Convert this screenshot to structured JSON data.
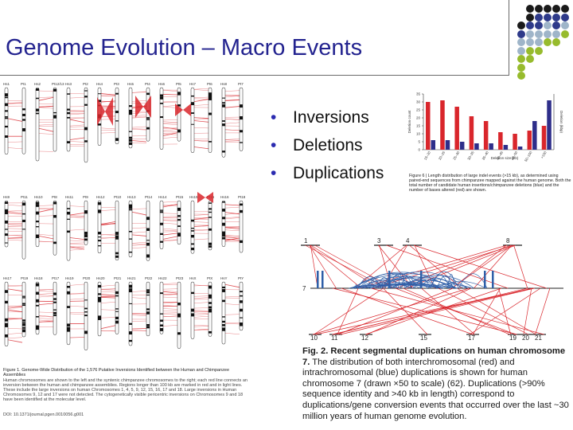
{
  "slide": {
    "title": "Genome Evolution – Macro Events",
    "bullets": [
      "Inversions",
      "Deletions",
      "Duplications"
    ]
  },
  "colors": {
    "title": "#23238f",
    "bullet": "#2b2bb0",
    "dots": [
      "#1a1a1a",
      "#2e3a8a",
      "#9fb5c9",
      "#97bb2d",
      "#ffffff"
    ],
    "red": "#d9262c",
    "blue": "#2f5fa8"
  },
  "figure_left": {
    "row1_labels": [
      "Hs1",
      "Pt1",
      "Hs2",
      "Pt12/13",
      "Hs3",
      "Pt2",
      "Hs4",
      "Pt3",
      "Hs5",
      "Pt4",
      "Hs6",
      "Pt5",
      "Hs7",
      "Pt6",
      "Hs8",
      "Pt7"
    ],
    "row2_labels": [
      "Hs9",
      "Pt11",
      "Hs10",
      "Pt8",
      "Hs11",
      "Pt9",
      "Hs12",
      "Pt10",
      "Hs13",
      "Pt14",
      "Hs14",
      "Pt15",
      "Hs15",
      "Pt16",
      "Hs16",
      "Pt18"
    ],
    "row3_labels": [
      "Hs17",
      "Pt19",
      "Hs18",
      "Pt17",
      "Hs19",
      "Pt20",
      "Hs20",
      "Pt21",
      "Hs21",
      "Pt22",
      "Hs22",
      "Pt23",
      "HsX",
      "PtX",
      "HsY",
      "PtY"
    ],
    "caption_title": "Figure 1. Genome-Wide Distribution of the 1,576 Putative Inversions Identified between the Human and Chimpanzee Assemblies",
    "caption_body": "Human chromosomes are shown to the left and the syntenic chimpanzee chromosomes to the right; each red line connects an inversion between the human and chimpanzee assemblies. Regions longer than 100 kb are marked in red and in light lines. These include the large inversions on human Chromosomes 1, 4, 5, 9, 12, 15, 16, 17 and 18. Large inversions in Human Chromosomes 9, 12 and 17 were not detected. The cytogenetically visible pericentric inversions on Chromosomes 9 and 18 have been identified at the molecular level.",
    "doi": "DOI: 10.1371/journal.pgen.0010056.g001"
  },
  "figure_chart": {
    "ylabel_left": "Deletion count",
    "ylabel_right": "Deletion (kbp)",
    "xlabel": "Deletion size (kb)",
    "caption": "Figure 6 | Length distribution of large indel events (>15 kb), as determined using paired-end sequences from chimpanzee mapped against the human genome. Both the total number of candidate human insertions/chimpanzee deletions (blue) and the number of bases altered (red) are shown."
  },
  "chart_data": {
    "type": "bar",
    "categories": [
      "15–20",
      "20–25",
      "25–30",
      "30–35",
      "35–40",
      "40–45",
      "45–50",
      "50–150",
      ">150"
    ],
    "series": [
      {
        "values": [
          30,
          31,
          27,
          21,
          18,
          11,
          10,
          12,
          15
        ]
      },
      {
        "values": [
          6,
          6,
          5,
          4,
          4,
          3,
          2,
          18,
          31
        ]
      }
    ],
    "xlabel": "Deletion size (kb)",
    "ylabel": "Deletion count",
    "ylim": [
      0,
      35
    ],
    "yticks": [
      0,
      5,
      10,
      15,
      20,
      25,
      30,
      35
    ]
  },
  "figure_dup": {
    "top_ticks": [
      "1",
      "3",
      "4",
      "8"
    ],
    "bottom_ticks": [
      "10",
      "11",
      "12",
      "15",
      "17",
      "19",
      "20",
      "21"
    ],
    "chrom_label": "7",
    "caption_bold": "Fig. 2. Recent segmental duplications on human chromosome 7.",
    "caption_rest": "The distribution of both interchromosomal (red) and intrachromosomal (blue) duplications is shown for human chromosome 7 (drawn ×50 to scale) (62). Duplications (>90% sequence identity and >40 kb in length) correspond to duplications/gene conversion events that occurred over the last ~30 million years of human genome evolution."
  }
}
